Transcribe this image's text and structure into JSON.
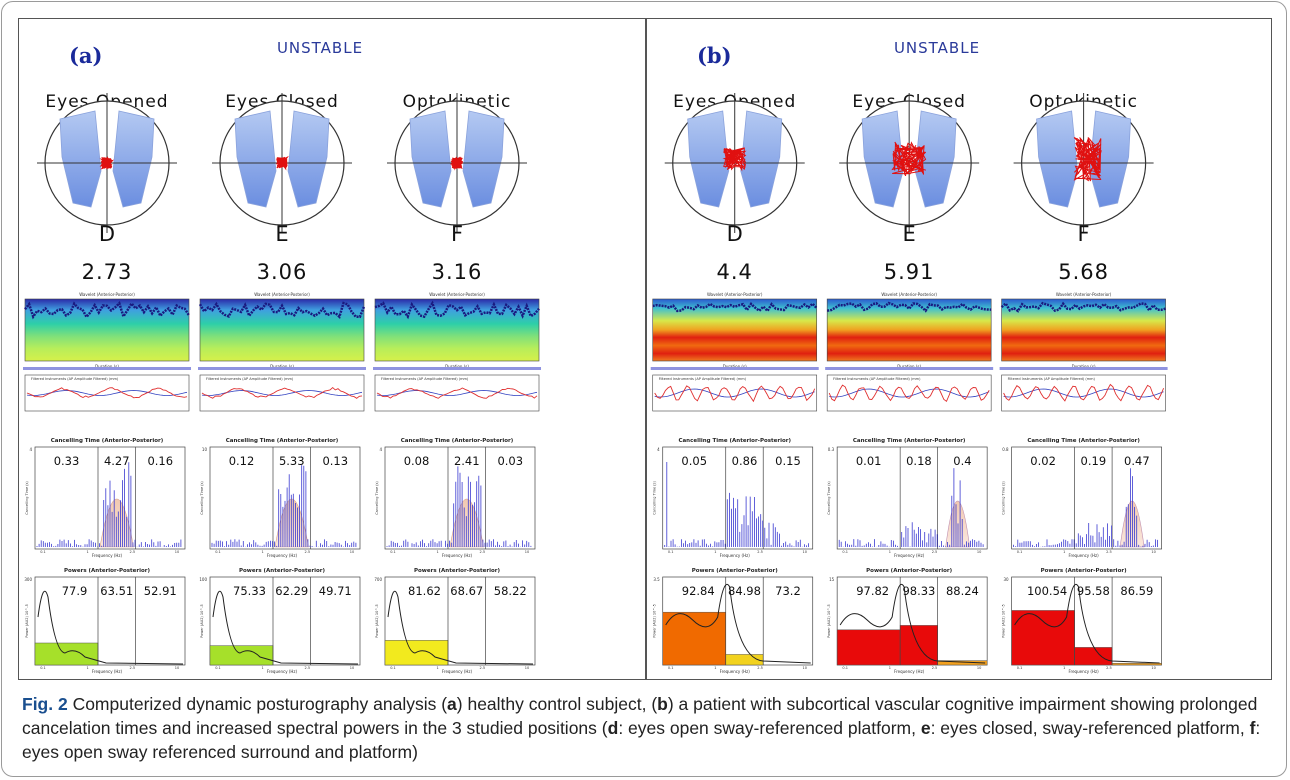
{
  "figure": {
    "panels": [
      {
        "id": "a",
        "label": "(a)",
        "condition": "UNSTABLE",
        "columns": [
          {
            "position_title": "Eyes Opened",
            "letter": "D",
            "score": "2.73",
            "sway_size": "small",
            "cancel_title": "Cancelling Time (Anterior-Posterior)",
            "cancel_values": [
              "0.33",
              "4.27",
              "0.16"
            ],
            "cancel_y_max": "4",
            "cancel_y_label": "Cancelling Time (s)",
            "power_title": "Powers (Anterior-Posterior)",
            "power_values": [
              "77.9",
              "63.51",
              "52.91"
            ],
            "power_fill": "#a6e02a",
            "power_fill2": "#a6e02a",
            "power_levels": [
              0.25,
              0.0,
              0.0
            ],
            "power_y_max": "300",
            "power_y_label": "Power (AU2) 10^-5"
          },
          {
            "position_title": "Eyes Closed",
            "letter": "E",
            "score": "3.06",
            "sway_size": "small",
            "cancel_title": "Cancelling Time (Anterior-Posterior)",
            "cancel_values": [
              "0.12",
              "5.33",
              "0.13"
            ],
            "cancel_y_max": "10",
            "cancel_y_label": "Cancelling Time (s)",
            "power_title": "Powers (Anterior-Posterior)",
            "power_values": [
              "75.33",
              "62.29",
              "49.71"
            ],
            "power_fill": "#a6e02a",
            "power_fill2": "#a6e02a",
            "power_levels": [
              0.22,
              0.0,
              0.0
            ],
            "power_y_max": "100",
            "power_y_label": "Power (AU2) 10^-5"
          },
          {
            "position_title": "Optokinetic",
            "letter": "F",
            "score": "3.16",
            "sway_size": "small",
            "cancel_title": "Cancelling Time (Anterior-Posterior)",
            "cancel_values": [
              "0.08",
              "2.41",
              "0.03"
            ],
            "cancel_y_max": "4",
            "cancel_y_label": "Cancelling Time (s)",
            "power_title": "Powers (Anterior-Posterior)",
            "power_values": [
              "81.62",
              "68.67",
              "58.22"
            ],
            "power_fill": "#f2ea1e",
            "power_fill2": "#f2ea1e",
            "power_levels": [
              0.28,
              0.0,
              0.0
            ],
            "power_y_max": "700",
            "power_y_label": "Power (AU2) 10^-5"
          }
        ]
      },
      {
        "id": "b",
        "label": "(b)",
        "condition": "UNSTABLE",
        "columns": [
          {
            "position_title": "Eyes Opened",
            "letter": "D",
            "score": "4.4",
            "sway_size": "medium",
            "cancel_title": "Cancelling Time (Anterior-Posterior)",
            "cancel_values": [
              "0.05",
              "0.86",
              "0.15"
            ],
            "cancel_y_max": "4",
            "cancel_y_label": "Cancelling Time (s)",
            "power_title": "Powers (Anterior-Posterior)",
            "power_values": [
              "92.84",
              "84.98",
              "73.2"
            ],
            "power_fill": "#f06a00",
            "power_fill2": "#f2d21e",
            "power_levels": [
              0.6,
              0.12,
              0.0
            ],
            "power_y_max": "3.5",
            "power_y_label": "Power (AU2) 10^-5"
          },
          {
            "position_title": "Eyes Closed",
            "letter": "E",
            "score": "5.91",
            "sway_size": "large",
            "cancel_title": "Cancelling Time (Anterior-Posterior)",
            "cancel_values": [
              "0.01",
              "0.18",
              "0.4"
            ],
            "cancel_y_max": "0.3",
            "cancel_y_label": "Cancelling Time (s)",
            "power_title": "Powers (Anterior-Posterior)",
            "power_values": [
              "97.82",
              "98.33",
              "88.24"
            ],
            "power_fill": "#e80a0a",
            "power_fill2": "#e80a0a",
            "power_levels": [
              0.4,
              0.45,
              0.05
            ],
            "power_y_max": "15",
            "power_y_label": "Power (AU2) 10^-5"
          },
          {
            "position_title": "Optokinetic",
            "letter": "F",
            "score": "5.68",
            "sway_size": "large",
            "cancel_title": "Cancelling Time (Anterior-Posterior)",
            "cancel_values": [
              "0.02",
              "0.19",
              "0.47"
            ],
            "cancel_y_max": "0.8",
            "cancel_y_label": "Cancelling Time (s)",
            "power_title": "Powers (Anterior-Posterior)",
            "power_values": [
              "100.54",
              "95.58",
              "86.59"
            ],
            "power_fill": "#e80a0a",
            "power_fill2": "#e80a0a",
            "power_levels": [
              0.62,
              0.2,
              0.02
            ],
            "power_y_max": "30",
            "power_y_label": "Power (AU2) 10^-5"
          }
        ]
      }
    ],
    "wavelet_title": "Wavelet (Anterior-Posterior)",
    "wavelet_xlabel": "Duration (s)",
    "trace_title": "Filtered Instruments (AP Amplitude Filtered) (mm)",
    "freq_xlabel": "Frequency (Hz)",
    "tick_labels": [
      "0.1",
      "1",
      "2.5",
      "10"
    ]
  },
  "caption": {
    "fig_label": "Fig. 2",
    "parts": [
      " Computerized dynamic posturography analysis (",
      "a",
      ") healthy control subject, (",
      "b",
      ") a patient with subcortical vascular cognitive impairment showing prolonged cancelation times and increased spectral powers in the 3 studied positions (",
      "d",
      ": eyes open sway-referenced platform, ",
      "e",
      ": eyes closed, sway-referenced platform, ",
      "f",
      ": eyes open sway referenced surround and platform)"
    ]
  }
}
